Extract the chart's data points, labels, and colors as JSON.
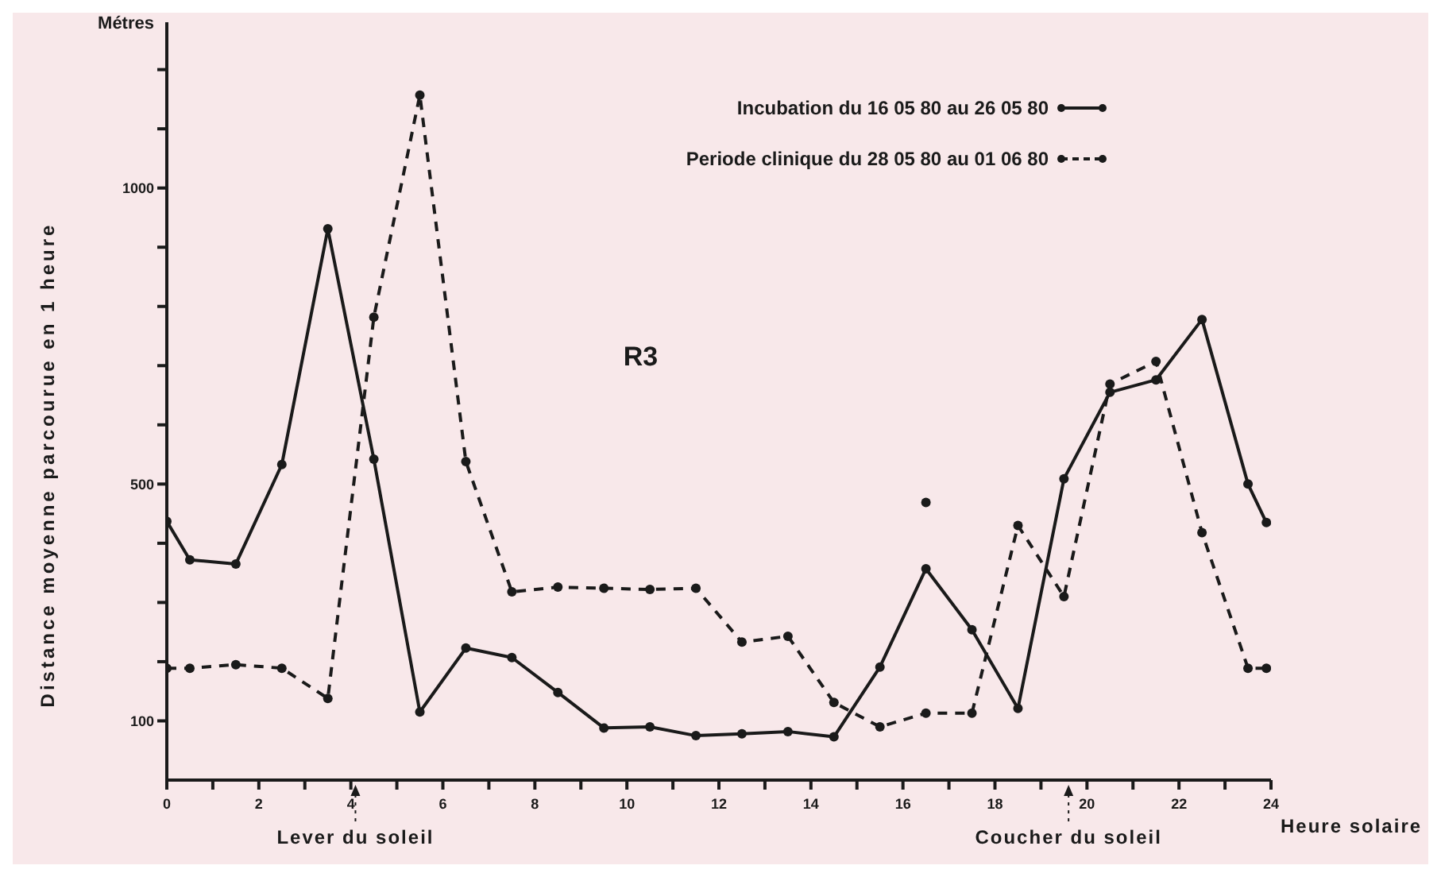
{
  "chart_data": {
    "type": "line",
    "ylabel": "Distance moyenne parcourue en 1 heure",
    "xlabel": "Heure solaire",
    "xlim": [
      0,
      24
    ],
    "xticks": [
      0,
      {
        "value": 1,
        "label": null
      },
      2,
      {
        "value": 3,
        "label": null
      },
      4,
      {
        "value": 5,
        "label": null
      },
      6,
      {
        "value": 7,
        "label": null
      },
      8,
      {
        "value": 9,
        "label": null
      },
      10,
      {
        "value": 11,
        "label": null
      },
      12,
      {
        "value": 13,
        "label": null
      },
      14,
      {
        "value": 15,
        "label": null
      },
      16,
      {
        "value": 17,
        "label": null
      },
      18,
      {
        "value": 19,
        "label": null
      },
      20,
      {
        "value": 21,
        "label": null
      },
      22,
      {
        "value": 23,
        "label": null
      },
      24
    ],
    "ylim": [
      0,
      1280
    ],
    "yticks": [
      100,
      {
        "value": 200,
        "label": null
      },
      {
        "value": 300,
        "label": null
      },
      {
        "value": 400,
        "label": null
      },
      500,
      {
        "value": 600,
        "label": null
      },
      {
        "value": 700,
        "label": null
      },
      {
        "value": 800,
        "label": null
      },
      {
        "value": 900,
        "label": null
      },
      1000,
      {
        "value": 1100,
        "label": null
      },
      {
        "value": 1200,
        "label": null
      }
    ],
    "series": [
      {
        "name": "Incubation du 16 05 80 au 26 05 80",
        "color": "#1a1a1a",
        "line_style": "solid",
        "x": [
          0,
          0.5,
          1.5,
          2.5,
          3.5,
          4.5,
          5.5,
          6.5,
          7.5,
          8.5,
          9.5,
          10.5,
          11.5,
          12.5,
          13.5,
          14.5,
          15.5,
          16.5,
          17.5,
          18.5,
          19.5,
          20.5,
          21.5,
          22.5,
          23.5,
          23.9
        ],
        "values": [
          437,
          372,
          365,
          533,
          931,
          542,
          115,
          223,
          207,
          148,
          88,
          90,
          75,
          78,
          82,
          73,
          191,
          357,
          254,
          121,
          509,
          655,
          676,
          778,
          500,
          435
        ]
      },
      {
        "name": "Periode clinique du 28 05 80 au 01 06 80",
        "color": "#1a1a1a",
        "line_style": "dashed",
        "x": [
          0,
          0.5,
          1.5,
          2.5,
          3.5,
          4.5,
          5.5,
          6.5,
          7.5,
          8.5,
          9.5,
          10.5,
          11.5,
          12.5,
          13.5,
          14.5,
          15.5,
          16.5,
          17.5,
          18.5,
          19.5,
          20.5,
          21.5,
          22.5,
          23.5,
          23.9
        ],
        "values": [
          189,
          189,
          195,
          189,
          138,
          782,
          1157,
          538,
          318,
          326,
          324,
          322,
          324,
          233,
          243,
          131,
          90,
          113,
          113,
          430,
          310,
          669,
          707,
          418,
          189,
          189
        ]
      },
      {
        "type": "scatter",
        "color": "#1a1a1a",
        "x": [
          16.5
        ],
        "values": [
          469
        ]
      }
    ],
    "marker": "circle",
    "legend": "top right",
    "ref_lines": [
      {
        "axis": "x",
        "value": 4.1,
        "label": "Lever du soleil",
        "line_style": "dotted"
      },
      {
        "axis": "x",
        "value": 19.6,
        "label": "Coucher du soleil",
        "line_style": "dotted"
      }
    ],
    "annotations": [
      "Métres",
      "R3"
    ]
  }
}
